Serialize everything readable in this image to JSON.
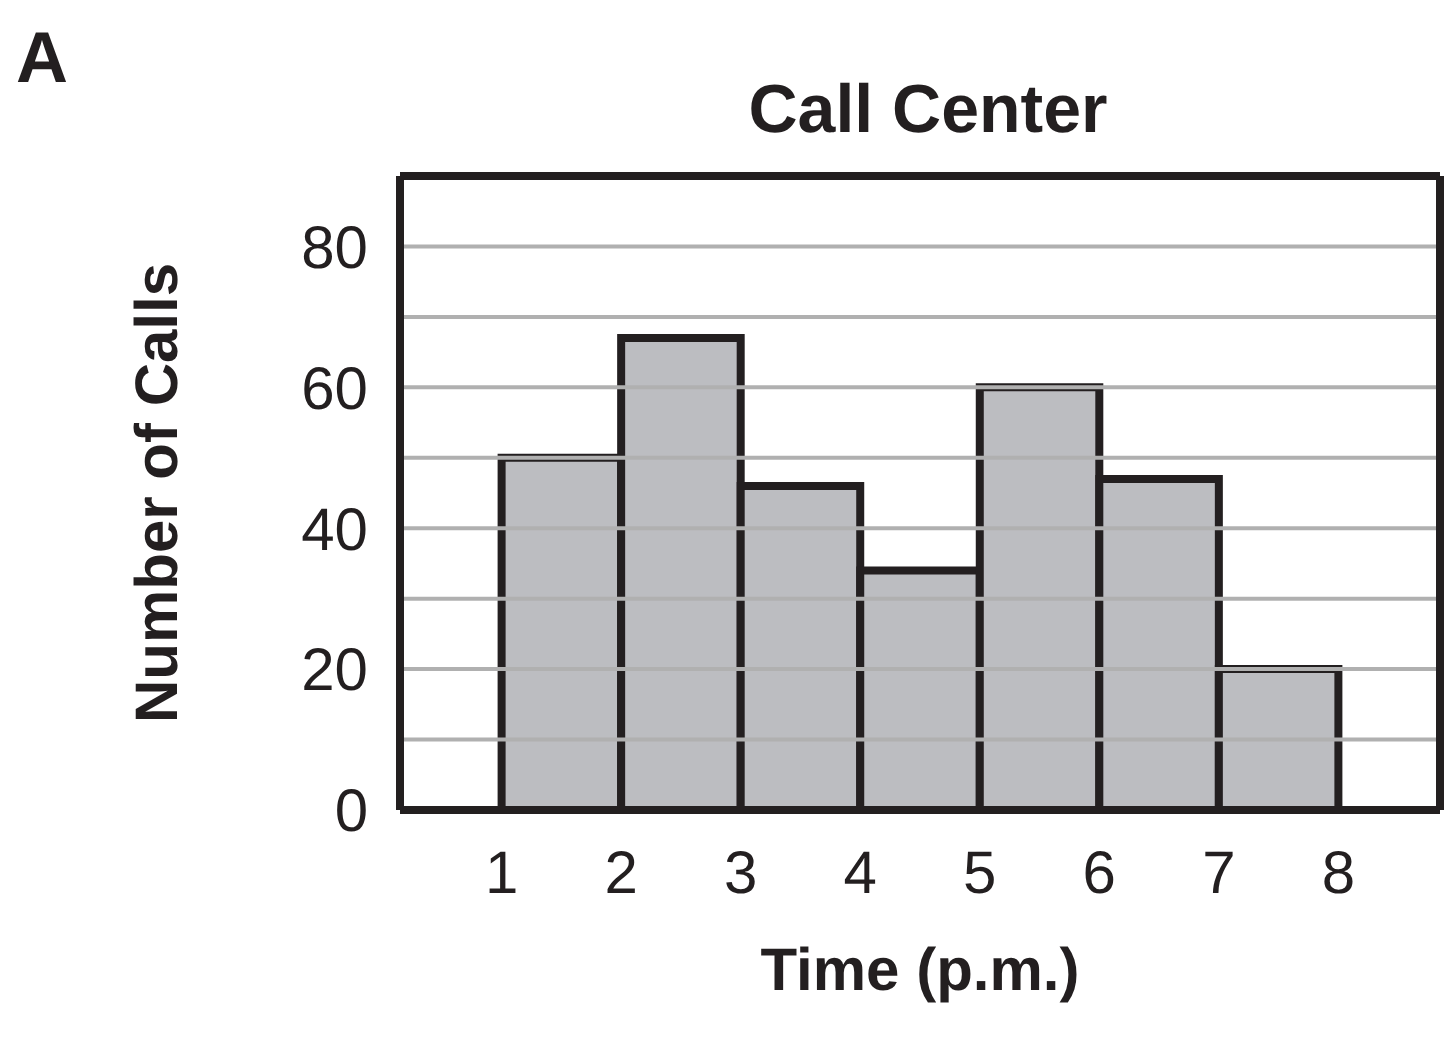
{
  "chart_data": {
    "type": "histogram",
    "title": "Call Center",
    "xlabel": "Time (p.m.)",
    "ylabel": "Number of Calls",
    "annotations": [
      "A"
    ],
    "bins": [
      1,
      2,
      3,
      4,
      5,
      6,
      7,
      8
    ],
    "values": [
      50,
      67,
      46,
      34,
      60,
      47,
      20
    ],
    "color": "#bcbdc1",
    "xlim": [
      0.15,
      8.85
    ],
    "xticks": [
      1,
      2,
      3,
      4,
      5,
      6,
      7,
      8
    ],
    "ylim": [
      0,
      90
    ],
    "yticks": [
      0,
      {
        "value": 10,
        "label": null
      },
      20,
      {
        "value": 30,
        "label": null
      },
      40,
      {
        "value": 50,
        "label": null
      },
      60,
      {
        "value": 70,
        "label": null
      },
      80
    ],
    "grid": "y"
  }
}
